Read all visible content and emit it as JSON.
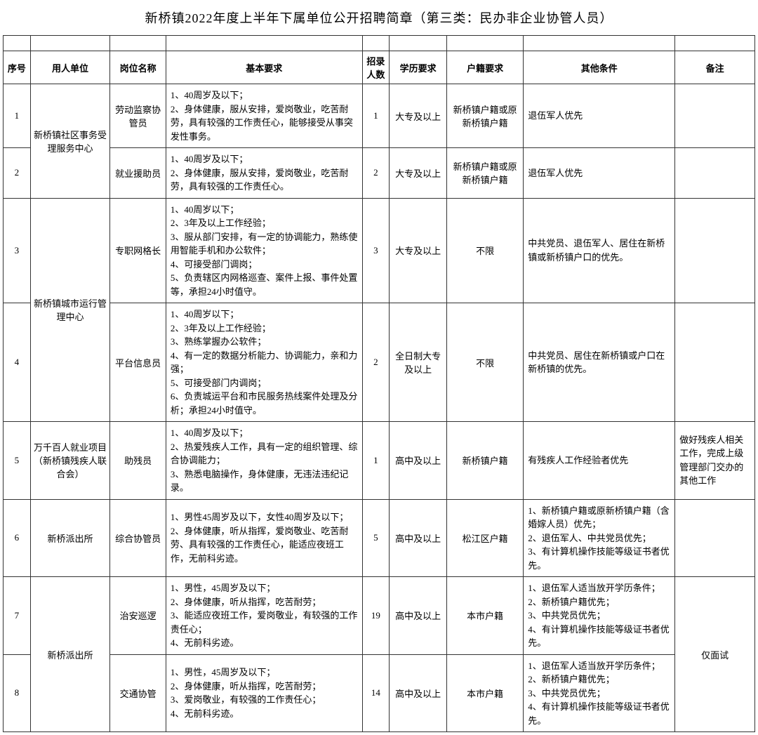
{
  "title": "新桥镇2022年度上半年下属单位公开招聘简章（第三类：民办非企业协管人员）",
  "headers": {
    "seq": "序号",
    "unit": "用人单位",
    "post": "岗位名称",
    "req": "基本要求",
    "num": "招录人数",
    "edu": "学历要求",
    "hukou": "户籍要求",
    "other": "其他条件",
    "note": "备注"
  },
  "rows": [
    {
      "seq": "1",
      "unit": "新桥镇社区事务受理服务中心",
      "unit_rowspan": 2,
      "post": "劳动监察协管员",
      "req": "1、40周岁及以下；\n2、身体健康，服从安排，爱岗敬业，吃苦耐劳，具有较强的工作责任心，能够接受从事突发性事务。",
      "num": "1",
      "edu": "大专及以上",
      "hukou": "新桥镇户籍或原新桥镇户籍",
      "other": "退伍军人优先",
      "note": ""
    },
    {
      "seq": "2",
      "post": "就业援助员",
      "req": "1、40周岁及以下；\n2、身体健康，服从安排，爱岗敬业，吃苦耐劳，具有较强的工作责任心。",
      "num": "2",
      "edu": "大专及以上",
      "hukou": "新桥镇户籍或原新桥镇户籍",
      "other": "退伍军人优先",
      "note": ""
    },
    {
      "seq": "3",
      "unit": "新桥镇城市运行管理中心",
      "unit_rowspan": 2,
      "post": "专职网格长",
      "req": "1、40周岁以下；\n2、3年及以上工作经验；\n3、服从部门安排，有一定的协调能力，熟练使用智能手机和办公软件；\n4、可接受部门调岗；\n5、负责辖区内网格巡查、案件上报、事件处置等，承担24小时值守。",
      "num": "3",
      "edu": "大专及以上",
      "hukou": "不限",
      "other": "中共党员、退伍军人、居住在新桥镇或新桥镇户口的优先。",
      "note": ""
    },
    {
      "seq": "4",
      "post": "平台信息员",
      "req": "1、40周岁以下；\n2、3年及以上工作经验；\n3、熟练掌握办公软件；\n4、有一定的数据分析能力、协调能力，亲和力强；\n5、可接受部门内调岗；\n6、负责城运平台和市民服务热线案件处理及分析；承担24小时值守。",
      "num": "2",
      "edu": "全日制大专及以上",
      "hukou": "不限",
      "other": "中共党员、居住在新桥镇或户口在新桥镇的优先。",
      "note": ""
    },
    {
      "seq": "5",
      "unit": "万千百人就业项目（新桥镇残疾人联合会）",
      "unit_rowspan": 1,
      "post": "助残员",
      "req": "1、40周岁及以下；\n2、热爱残疾人工作，具有一定的组织管理、综合协调能力；\n3、熟悉电脑操作，身体健康，无违法违纪记录。",
      "num": "1",
      "edu": "高中及以上",
      "hukou": "新桥镇户籍",
      "other": "有残疾人工作经验者优先",
      "note": "做好残疾人相关工作，完成上级管理部门交办的其他工作"
    },
    {
      "seq": "6",
      "unit": "新桥派出所",
      "unit_rowspan": 1,
      "post": "综合协管员",
      "req": "1、男性45周岁及以下，女性40周岁及以下；\n2、身体健康，听从指挥，爱岗敬业、吃苦耐劳、具有较强的工作责任心，能适应夜班工作，无前科劣迹。",
      "num": "5",
      "edu": "高中及以上",
      "hukou": "松江区户籍",
      "other": "1、新桥镇户籍或原新桥镇户籍（含婚嫁人员）优先；\n2、退伍军人、中共党员优先；\n3、有计算机操作技能等级证书者优先。",
      "note": ""
    },
    {
      "seq": "7",
      "unit": "新桥派出所",
      "unit_rowspan": 2,
      "post": "治安巡逻",
      "req": "1、男性，45周岁及以下；\n2、身体健康，听从指挥，吃苦耐劳；\n3、能适应夜班工作，爱岗敬业，有较强的工作责任心；\n4、无前科劣迹。",
      "num": "19",
      "edu": "高中及以上",
      "hukou": "本市户籍",
      "other": "1、退伍军人适当放开学历条件；\n2、新桥镇户籍优先；\n3、中共党员优先；\n4、有计算机操作技能等级证书者优先。",
      "note": "仅面试",
      "note_rowspan": 2
    },
    {
      "seq": "8",
      "post": "交通协管",
      "req": "1、男性，45周岁及以下；\n2、身体健康，听从指挥，吃苦耐劳；\n3、爱岗敬业，有较强的工作责任心；\n4、无前科劣迹。",
      "num": "14",
      "edu": "高中及以上",
      "hukou": "本市户籍",
      "other": "1、退伍军人适当放开学历条件；\n2、新桥镇户籍优先；\n3、中共党员优先；\n4、有计算机操作技能等级证书者优先。"
    }
  ]
}
